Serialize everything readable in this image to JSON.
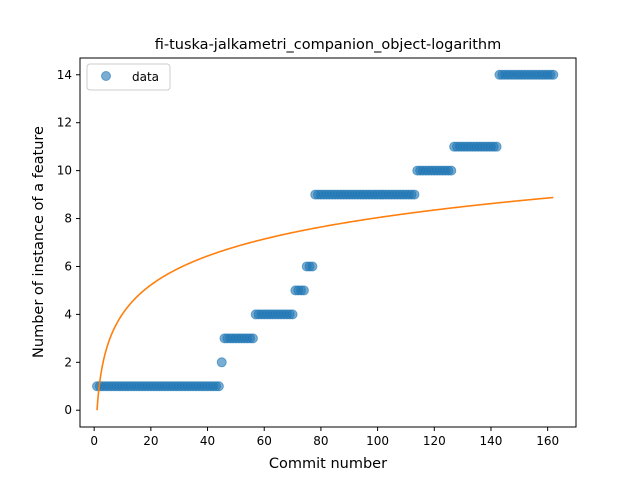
{
  "chart_data": {
    "type": "scatter",
    "title": "fi-tuska-jalkametri_companion_object-logarithm",
    "xlabel": "Commit number",
    "ylabel": "Number of instance of a feature",
    "xlim": [
      -5,
      170
    ],
    "ylim": [
      -0.7,
      14.7
    ],
    "xticks": [
      0,
      20,
      40,
      60,
      80,
      100,
      120,
      140,
      160
    ],
    "yticks": [
      0,
      2,
      4,
      6,
      8,
      10,
      12,
      14
    ],
    "legend": {
      "position": "top-left",
      "entries": [
        "data"
      ]
    },
    "grid": false,
    "colors": {
      "data": "#1f77b4",
      "fit": "#ff7f0e"
    },
    "series": [
      {
        "name": "data",
        "kind": "scatter",
        "segments": [
          {
            "x_from": 1,
            "x_to": 44,
            "y": 1
          },
          {
            "x_from": 45,
            "x_to": 45,
            "y": 2
          },
          {
            "x_from": 46,
            "x_to": 56,
            "y": 3
          },
          {
            "x_from": 57,
            "x_to": 70,
            "y": 4
          },
          {
            "x_from": 71,
            "x_to": 74,
            "y": 5
          },
          {
            "x_from": 75,
            "x_to": 77,
            "y": 6
          },
          {
            "x_from": 78,
            "x_to": 113,
            "y": 9
          },
          {
            "x_from": 114,
            "x_to": 126,
            "y": 10
          },
          {
            "x_from": 127,
            "x_to": 142,
            "y": 11
          },
          {
            "x_from": 143,
            "x_to": 162,
            "y": 14
          }
        ]
      },
      {
        "kind": "line",
        "function": "logarithm",
        "a": 1.745,
        "x_range": [
          1,
          162
        ]
      }
    ]
  }
}
